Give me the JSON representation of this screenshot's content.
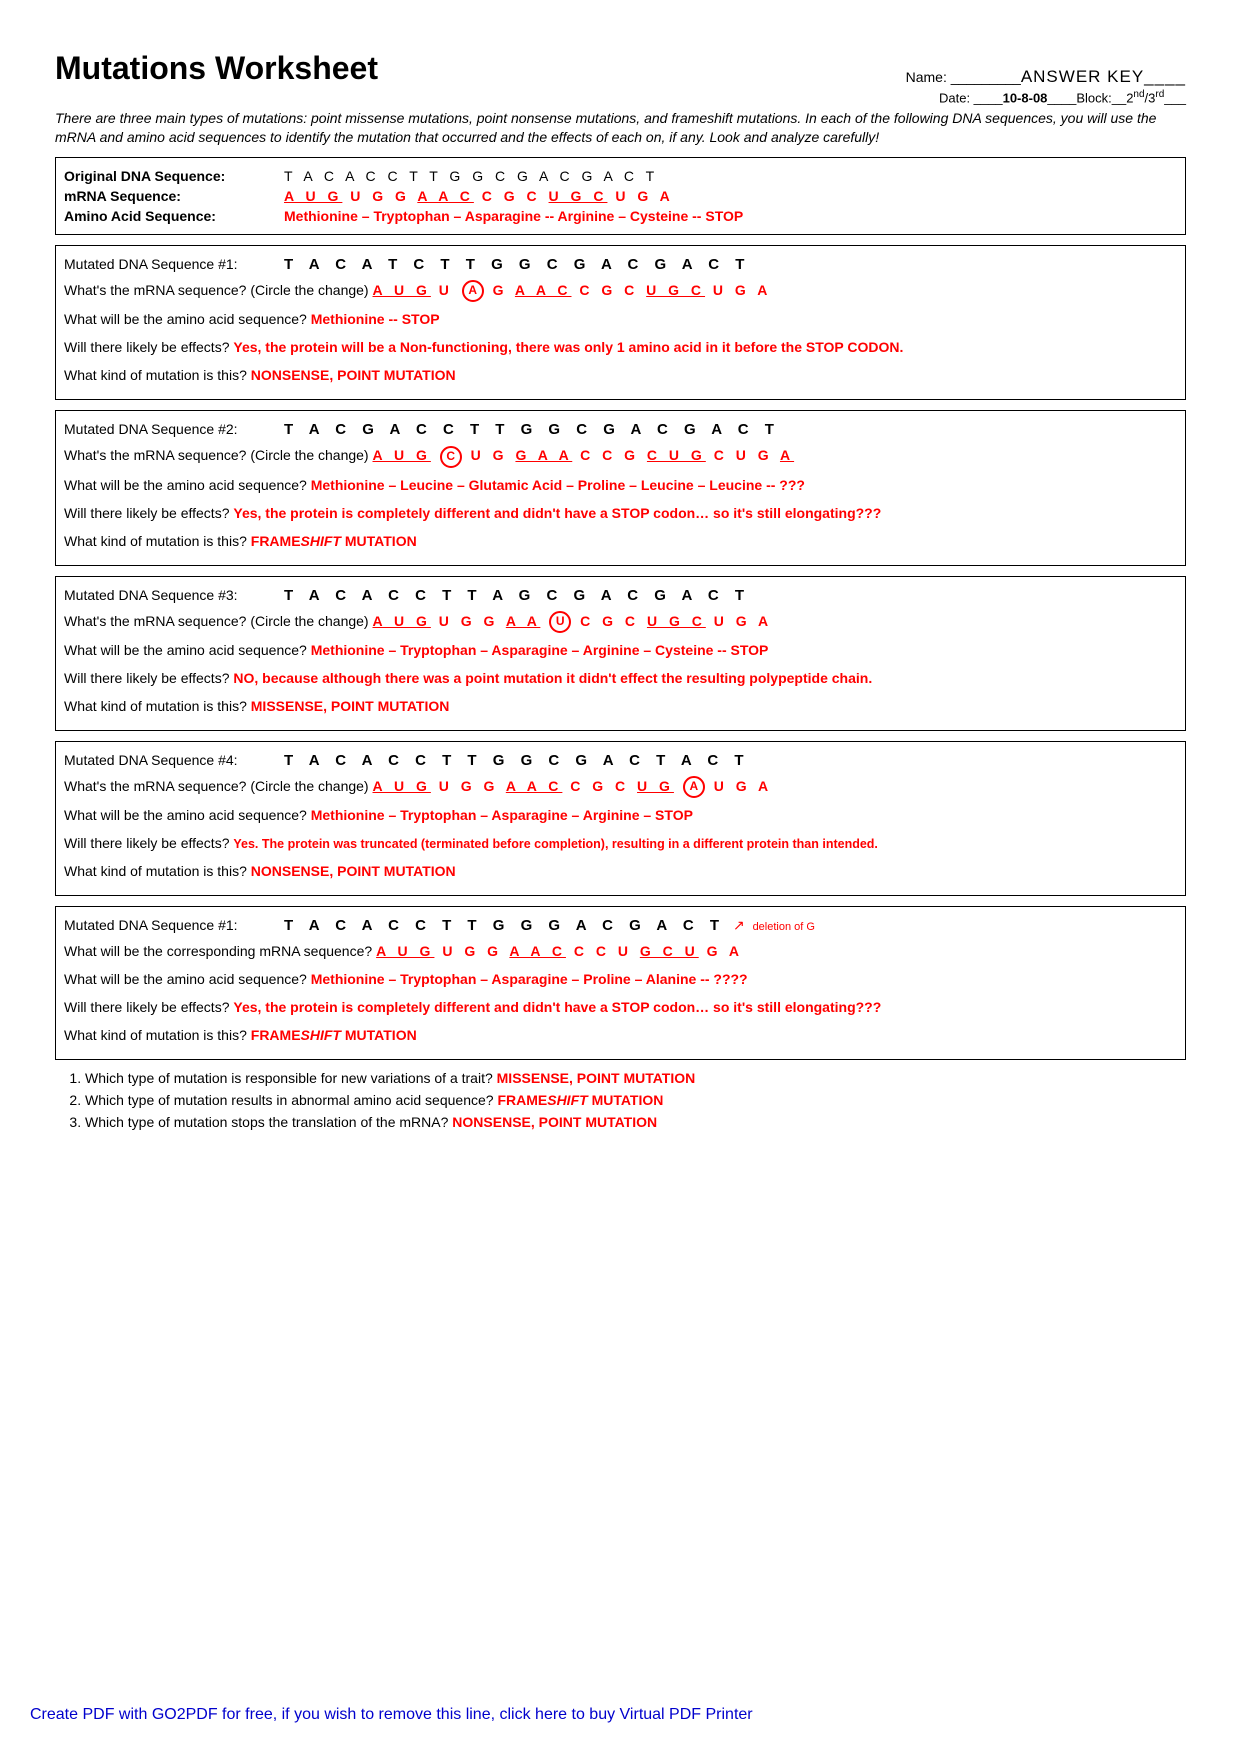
{
  "header": {
    "title": "Mutations Worksheet",
    "name_label": "Name: _________",
    "name_value": "ANSWER KEY____",
    "date_label": "Date: ____",
    "date_value": "10-8-08",
    "date_suffix": "____Block:__",
    "block_value": "2",
    "block_suffix": "/3",
    "block_end": "___"
  },
  "intro": "There are three main types of mutations: point missense mutations, point nonsense mutations, and frameshift mutations. In each of the following DNA sequences, you will use the mRNA and amino acid sequences to identify the mutation that occurred and the effects of each on, if any. Look and analyze carefully!",
  "original": {
    "dna_label": "Original DNA Sequence:",
    "dna_seq": "T A C A C C T T G G C G A C G A C T",
    "mrna_label": "mRNA Sequence:",
    "mrna_pre": "A U G",
    "mrna_mid": " U G G ",
    "mrna_u2": "A A C",
    "mrna_mid2": " C G C ",
    "mrna_u3": "U G C",
    "mrna_end": " U G A",
    "aa_label": "Amino Acid Sequence:",
    "aa_seq": "Methionine – Tryptophan – Asparagine -- Arginine – Cysteine -- STOP"
  },
  "m1": {
    "label": "Mutated DNA Sequence #1:",
    "dna": "T A C A T C T T G G C G A C G A C T",
    "mrna_q": "What's the mRNA sequence? (Circle the change)  ",
    "aa_q": "What will be the amino acid sequence? ",
    "aa_a": "Methionine -- STOP",
    "eff_q": "Will there likely be effects?  ",
    "eff_a": "Yes, the protein will be a Non-functioning, there was only 1 amino acid in it before the STOP CODON.",
    "kind_q": "What kind of mutation is this?  ",
    "kind_a": "NONSENSE, POINT MUTATION"
  },
  "m2": {
    "label": "Mutated DNA Sequence #2:",
    "dna": "T A C G A C C T T G G C G A C G A C T",
    "mrna_q": "What's the mRNA sequence? (Circle the change) ",
    "aa_q": "What will be the amino acid sequence? ",
    "aa_a": "Methionine – Leucine – Glutamic Acid – Proline – Leucine – Leucine -- ???",
    "eff_q": "Will there likely be effects? ",
    "eff_a": "Yes, the protein is completely different and didn't have a STOP codon… so it's still elongating???",
    "kind_q": "What kind of mutation is this? ",
    "kind_a_pre": "FRAME",
    "kind_a_i": "SHIFT",
    "kind_a_post": " MUTATION"
  },
  "m3": {
    "label": "Mutated DNA Sequence #3:",
    "dna": "T A C A C C T T A G C G A C G A C T",
    "mrna_q": "What's the mRNA sequence? (Circle the change) ",
    "aa_q": "What will be the amino acid sequence? ",
    "aa_a": "Methionine – Tryptophan – Asparagine – Arginine – Cysteine -- STOP",
    "eff_q": "Will there likely be effects? ",
    "eff_a": "NO, because although there was a point mutation it didn't effect the resulting polypeptide chain.",
    "kind_q": "What kind of mutation is this? ",
    "kind_a": "MISSENSE, POINT MUTATION"
  },
  "m4": {
    "label": "Mutated DNA Sequence #4:",
    "dna": "T A C A C C T T G G C G A C T A C T",
    "mrna_q": "What's the mRNA sequence? (Circle the change) ",
    "aa_q": "What will be the amino acid sequence? ",
    "aa_a": "Methionine – Tryptophan – Asparagine – Arginine – STOP",
    "eff_q": "Will there likely be effects? ",
    "eff_a": "Yes. The protein was truncated (terminated before completion), resulting in a different protein than intended.",
    "kind_q": "What kind of mutation is this? ",
    "kind_a": "NONSENSE, POINT MUTATION"
  },
  "m5": {
    "label": "Mutated DNA Sequence #1:",
    "dna": "T A C A C C T T G G G A C G A C T",
    "del_note": "deletion of G",
    "mrna_q": "What will be the corresponding mRNA sequence? ",
    "aa_q": "What will be the amino acid sequence? ",
    "aa_a": "Methionine – Tryptophan – Asparagine – Proline – Alanine -- ????",
    "eff_q": "Will there likely be effects? ",
    "eff_a": "Yes, the protein is completely different and didn't have a STOP codon… so it's still elongating???",
    "kind_q": "What kind of mutation is this? ",
    "kind_a_pre": "FRAME",
    "kind_a_i": "SHIFT",
    "kind_a_post": " MUTATION"
  },
  "questions": {
    "q1": "Which type of mutation is responsible for new variations of a trait? ",
    "a1": "MISSENSE, POINT MUTATION",
    "q2": "Which type of mutation results in abnormal amino acid sequence? ",
    "a2_pre": "FRAME",
    "a2_i": "SHIFT",
    "a2_post": " MUTATION",
    "q3": "Which type of mutation stops the translation of the mRNA? ",
    "a3": "NONSENSE, POINT MUTATION"
  },
  "footer": "Create PDF with GO2PDF for free, if you wish to remove this line, click here to buy Virtual PDF Printer"
}
